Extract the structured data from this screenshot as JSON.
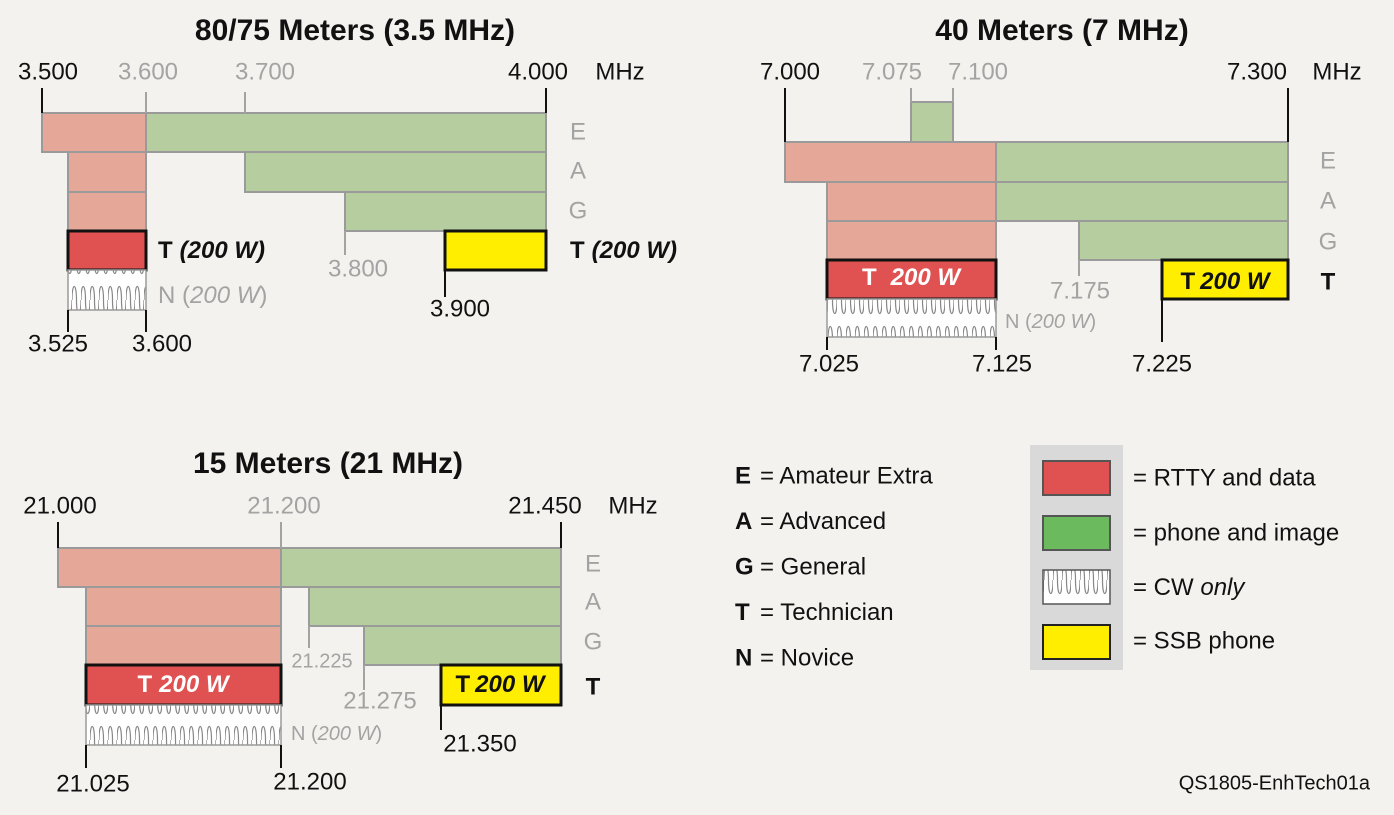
{
  "bands": [
    {
      "title": "80/75 Meters (3.5 MHz)",
      "unit": "MHz",
      "top_ticks": [
        "3.500",
        "3.600",
        "3.700",
        "4.000"
      ],
      "lower_ticks": [
        "3.800",
        "3.900"
      ],
      "bottom_ticks": [
        "3.525",
        "3.600"
      ],
      "classes": [
        "E",
        "A",
        "G"
      ],
      "t_data": [
        "T",
        "(200 W)"
      ],
      "t_phone": [
        "T",
        "(200 W)"
      ],
      "novice": [
        "N (",
        "200 W",
        ")"
      ]
    },
    {
      "title": "40 Meters (7 MHz)",
      "unit": "MHz",
      "top_ticks": [
        "7.000",
        "7.075",
        "7.100",
        "7.300"
      ],
      "lower_ticks": [
        "7.175",
        "7.225"
      ],
      "bottom_ticks": [
        "7.025",
        "7.125"
      ],
      "classes": [
        "E",
        "A",
        "G",
        "T"
      ],
      "t_data": [
        "T",
        "200 W"
      ],
      "t_phone": [
        "T",
        "200 W"
      ],
      "novice": [
        "N (",
        "200 W",
        ")"
      ]
    },
    {
      "title": "15 Meters (21 MHz)",
      "unit": "MHz",
      "top_ticks": [
        "21.000",
        "21.200",
        "21.450"
      ],
      "lower_ticks": [
        "21.225",
        "21.275",
        "21.350"
      ],
      "bottom_ticks": [
        "21.025",
        "21.200"
      ],
      "classes": [
        "E",
        "A",
        "G",
        "T"
      ],
      "t_data": [
        "T",
        "200 W"
      ],
      "t_phone": [
        "T",
        "200 W"
      ],
      "novice": [
        "N (",
        "200 W",
        ")"
      ]
    }
  ],
  "license_key": [
    {
      "code": "E",
      "label": "= Amateur Extra"
    },
    {
      "code": "A",
      "label": "= Advanced"
    },
    {
      "code": "G",
      "label": "= General"
    },
    {
      "code": "T",
      "label": "= Technician"
    },
    {
      "code": "N",
      "label": "= Novice"
    }
  ],
  "mode_key": [
    {
      "label": "= RTTY and data"
    },
    {
      "label": "= phone and image"
    },
    {
      "label": [
        "= CW ",
        "only"
      ]
    },
    {
      "label": "= SSB phone"
    }
  ],
  "credit": "QS1805-EnhTech01a"
}
